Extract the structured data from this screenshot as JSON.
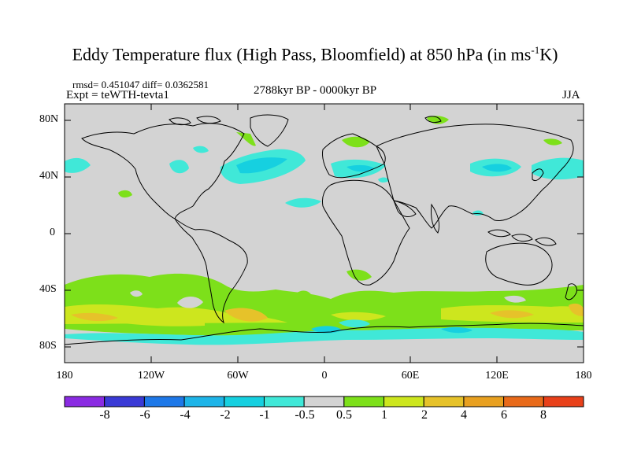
{
  "title": {
    "main": "Eddy Temperature flux (High Pass, Bloomfield) at 850 hPa (in ms",
    "sup": "-1",
    "end": "K)"
  },
  "stats": "rmsd= 0.451047 diff= 0.0362581",
  "experiment": "Expt = teWTH-tevta1",
  "period": "2788kyr BP - 0000kyr BP",
  "season": "JJA",
  "lat_labels": [
    "80N",
    "40N",
    "0",
    "40S",
    "80S"
  ],
  "lon_labels": [
    "180",
    "120W",
    "60W",
    "0",
    "60E",
    "120E",
    "180"
  ],
  "colorbar": {
    "labels": [
      "-8",
      "-6",
      "-4",
      "-2",
      "-1",
      "-0.5",
      "0.5",
      "1",
      "2",
      "4",
      "6",
      "8"
    ],
    "colors": [
      "#8a2be2",
      "#3a3ad6",
      "#1e78e8",
      "#1eb4e8",
      "#16d0e0",
      "#40e8d8",
      "#d3d3d3",
      "#7de01a",
      "#cde61e",
      "#e6c22a",
      "#e8a020",
      "#e86a1a",
      "#e8401a"
    ]
  },
  "colors": {
    "land_neutral": "#d3d3d3",
    "negative_weak": "#40e8d8",
    "negative_mid": "#16d0e0",
    "positive_weak": "#7de01a",
    "positive_mid": "#cde61e",
    "positive_strong": "#e6c22a",
    "positive_max": "#e8a020"
  }
}
